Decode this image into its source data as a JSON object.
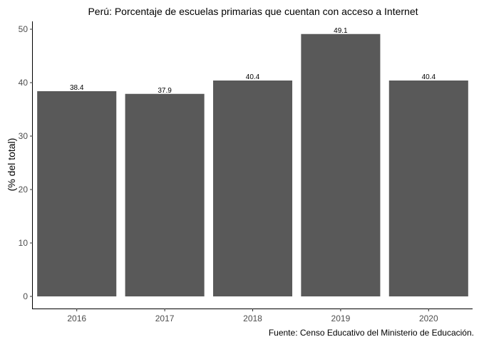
{
  "chart_data": {
    "type": "bar",
    "title": "Perú: Porcentaje de escuelas primarias que cuentan con acceso a Internet",
    "xlabel": "",
    "ylabel": "(% del total)",
    "categories": [
      "2016",
      "2017",
      "2018",
      "2019",
      "2020"
    ],
    "values": [
      38.4,
      37.9,
      40.4,
      49.1,
      40.4
    ],
    "value_labels": [
      "38.4",
      "37.9",
      "40.4",
      "49.1",
      "40.4"
    ],
    "ylim": [
      0,
      51.5
    ],
    "yticks": [
      0,
      10,
      20,
      30,
      40,
      50
    ],
    "ytick_labels": [
      "0",
      "10",
      "20",
      "30",
      "40",
      "50"
    ],
    "grid": false,
    "legend": "none",
    "caption": "Fuente: Censo Educativo del Ministerio de Educación.",
    "bar_color": "#595959"
  }
}
